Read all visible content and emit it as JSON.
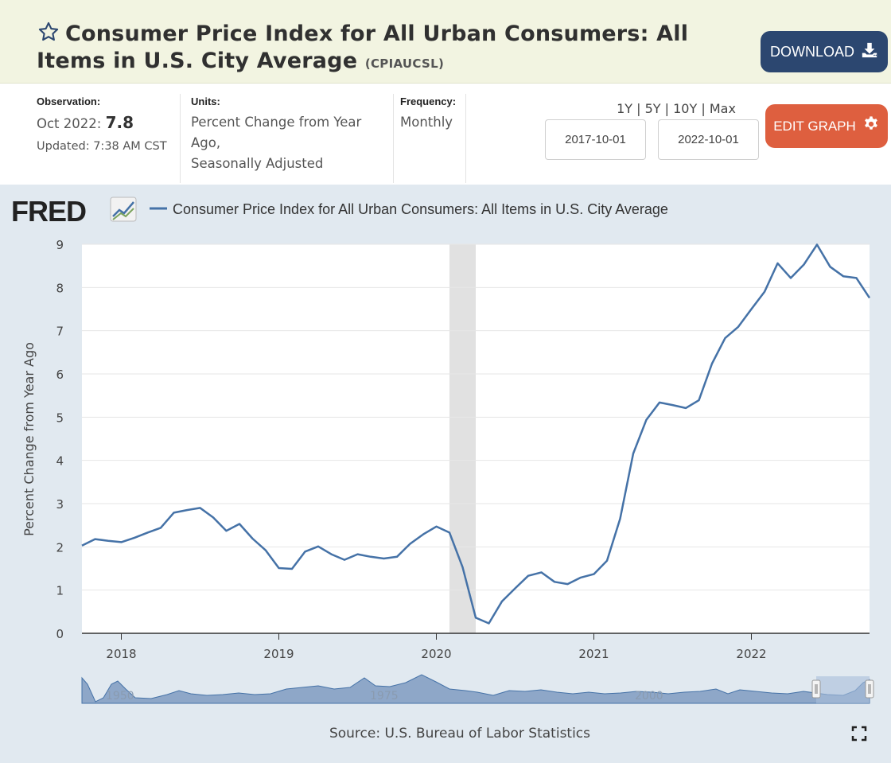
{
  "header": {
    "title": "Consumer Price Index for All Urban Consumers: All Items in U.S. City Average",
    "series_id": "(CPIAUCSL)",
    "download_label": "DOWNLOAD"
  },
  "meta": {
    "observation_label": "Observation:",
    "observation_period": "Oct 2022:",
    "observation_value": "7.8",
    "updated": "Updated: 7:38 AM CST",
    "units_label": "Units:",
    "units_line1": "Percent Change from Year",
    "units_line2": "Ago,",
    "units_line3": "Seasonally Adjusted",
    "frequency_label": "Frequency:",
    "frequency_value": "Monthly"
  },
  "controls": {
    "range_links": [
      "1Y",
      "5Y",
      "10Y",
      "Max"
    ],
    "start_date": "2017-10-01",
    "end_date": "2022-10-01",
    "edit_label": "EDIT GRAPH"
  },
  "colors": {
    "line": "#4572a7",
    "recession": "#e1e1e1",
    "download_bg": "#2c4770",
    "edit_bg": "#de5f3f"
  },
  "chart_data": {
    "type": "line",
    "logo": "FRED",
    "legend": "Consumer Price Index for All Urban Consumers: All Items in U.S. City Average",
    "ylabel": "Percent Change from Year Ago",
    "ylim": [
      0,
      9
    ],
    "y_ticks": [
      "0",
      "1",
      "2",
      "3",
      "4",
      "5",
      "6",
      "7",
      "8",
      "9"
    ],
    "x_ticks": [
      "2018",
      "2019",
      "2020",
      "2021",
      "2022"
    ],
    "xlim": [
      "2017-10",
      "2022-10"
    ],
    "recession": [
      "2020-02",
      "2020-04"
    ],
    "grid": true,
    "series": [
      {
        "name": "Consumer Price Index for All Urban Consumers: All Items in U.S. City Average",
        "x": [
          "2017-10",
          "2017-11",
          "2017-12",
          "2018-01",
          "2018-02",
          "2018-03",
          "2018-04",
          "2018-05",
          "2018-06",
          "2018-07",
          "2018-08",
          "2018-09",
          "2018-10",
          "2018-11",
          "2018-12",
          "2019-01",
          "2019-02",
          "2019-03",
          "2019-04",
          "2019-05",
          "2019-06",
          "2019-07",
          "2019-08",
          "2019-09",
          "2019-10",
          "2019-11",
          "2019-12",
          "2020-01",
          "2020-02",
          "2020-03",
          "2020-04",
          "2020-05",
          "2020-06",
          "2020-07",
          "2020-08",
          "2020-09",
          "2020-10",
          "2020-11",
          "2020-12",
          "2021-01",
          "2021-02",
          "2021-03",
          "2021-04",
          "2021-05",
          "2021-06",
          "2021-07",
          "2021-08",
          "2021-09",
          "2021-10",
          "2021-11",
          "2021-12",
          "2022-01",
          "2022-02",
          "2022-03",
          "2022-04",
          "2022-05",
          "2022-06",
          "2022-07",
          "2022-08",
          "2022-09",
          "2022-10"
        ],
        "values": [
          2.03,
          2.18,
          2.14,
          2.11,
          2.21,
          2.33,
          2.44,
          2.79,
          2.85,
          2.9,
          2.68,
          2.37,
          2.53,
          2.19,
          1.92,
          1.51,
          1.49,
          1.89,
          2.01,
          1.83,
          1.7,
          1.83,
          1.77,
          1.73,
          1.77,
          2.07,
          2.29,
          2.47,
          2.33,
          1.53,
          0.36,
          0.23,
          0.74,
          1.04,
          1.33,
          1.41,
          1.19,
          1.14,
          1.29,
          1.37,
          1.68,
          2.65,
          4.16,
          4.94,
          5.34,
          5.28,
          5.21,
          5.39,
          6.24,
          6.83,
          7.09,
          7.5,
          7.9,
          8.56,
          8.22,
          8.53,
          8.99,
          8.48,
          8.26,
          8.22,
          7.76
        ]
      }
    ],
    "source": "Source: U.S. Bureau of Labor Statistics",
    "navigator_labels": [
      "1950",
      "1975",
      "2000"
    ]
  }
}
